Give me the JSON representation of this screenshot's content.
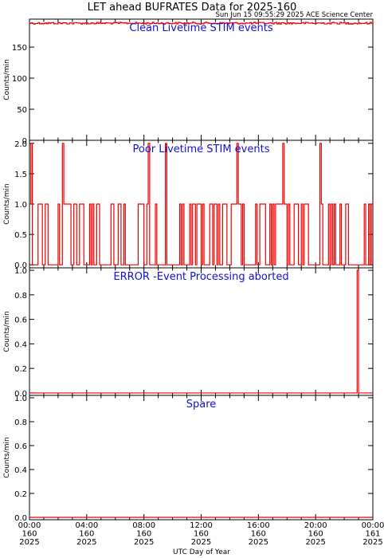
{
  "figure": {
    "title": "LET ahead BUFRATES Data for 2025-160",
    "timestamp": "Sun Jun 15 09:55:29 2025 ACE Science Center",
    "xlabel": "UTC Day of Year"
  },
  "colors": {
    "data": "#ee0000",
    "panel_title": "#1010d8",
    "axis": "#000000",
    "background": "#ffffff"
  },
  "chart_data": [
    {
      "type": "line",
      "title": "Clean Livetime STIM events",
      "ylabel": "Counts/min",
      "ylim": [
        0,
        195
      ],
      "yticks": [
        0,
        50,
        100,
        150
      ],
      "ytick_labels": [
        "0",
        "50",
        "100",
        "150"
      ],
      "xlim_hours": [
        0,
        24
      ],
      "baseline": 190,
      "noise": 3,
      "series": [
        {
          "values": []
        }
      ]
    },
    {
      "type": "line",
      "title": "Poor Livetime STIM events",
      "ylabel": "Counts/min",
      "ylim": [
        -0.05,
        2.05
      ],
      "yticks": [
        0.0,
        0.5,
        1.0,
        1.5,
        2.0
      ],
      "ytick_labels": [
        "0.0",
        "0.5",
        "1.0",
        "1.5",
        "2.0"
      ],
      "xlim_hours": [
        0,
        24
      ],
      "spikes_to_2": [
        0.08,
        0.12,
        2.3,
        8.3,
        9.5,
        14.5,
        17.7,
        20.3
      ],
      "active_windows": [
        [
          0.0,
          9.5
        ],
        [
          10.1,
          24.0
        ]
      ],
      "quiet_windows": [
        [
          1.3,
          1.6
        ],
        [
          5.0,
          5.5
        ],
        [
          8.4,
          8.8
        ],
        [
          9.5,
          10.1
        ],
        [
          15.0,
          15.6
        ],
        [
          19.5,
          19.8
        ],
        [
          22.7,
          23.3
        ]
      ],
      "series": [
        {
          "values": []
        }
      ]
    },
    {
      "type": "line",
      "title": "ERROR -Event Processing aborted",
      "ylabel": "Counts/min",
      "ylim": [
        -0.02,
        1.02
      ],
      "yticks": [
        0.0,
        0.2,
        0.4,
        0.6,
        0.8,
        1.0
      ],
      "ytick_labels": [
        "0.0",
        "0.2",
        "0.4",
        "0.6",
        "0.8",
        "1.0"
      ],
      "xlim_hours": [
        0,
        24
      ],
      "spikes_to_1": [
        22.85
      ],
      "series": [
        {
          "values": []
        }
      ]
    },
    {
      "type": "line",
      "title": "Spare",
      "ylabel": "Counts/min",
      "ylim": [
        -0.02,
        1.02
      ],
      "yticks": [
        0.0,
        0.2,
        0.4,
        0.6,
        0.8,
        1.0
      ],
      "ytick_labels": [
        "0.0",
        "0.2",
        "0.4",
        "0.6",
        "0.8",
        "1.0"
      ],
      "xlim_hours": [
        0,
        24
      ],
      "series": [
        {
          "values": []
        }
      ]
    }
  ],
  "x_axis": {
    "ticks_hours": [
      0,
      4,
      8,
      12,
      16,
      20,
      24
    ],
    "labels": [
      {
        "time": "00:00",
        "doy": "160",
        "year": "2025"
      },
      {
        "time": "04:00",
        "doy": "160",
        "year": "2025"
      },
      {
        "time": "08:00",
        "doy": "160",
        "year": "2025"
      },
      {
        "time": "12:00",
        "doy": "160",
        "year": "2025"
      },
      {
        "time": "16:00",
        "doy": "160",
        "year": "2025"
      },
      {
        "time": "20:00",
        "doy": "160",
        "year": "2025"
      },
      {
        "time": "00:00",
        "doy": "161",
        "year": "2025"
      }
    ]
  }
}
